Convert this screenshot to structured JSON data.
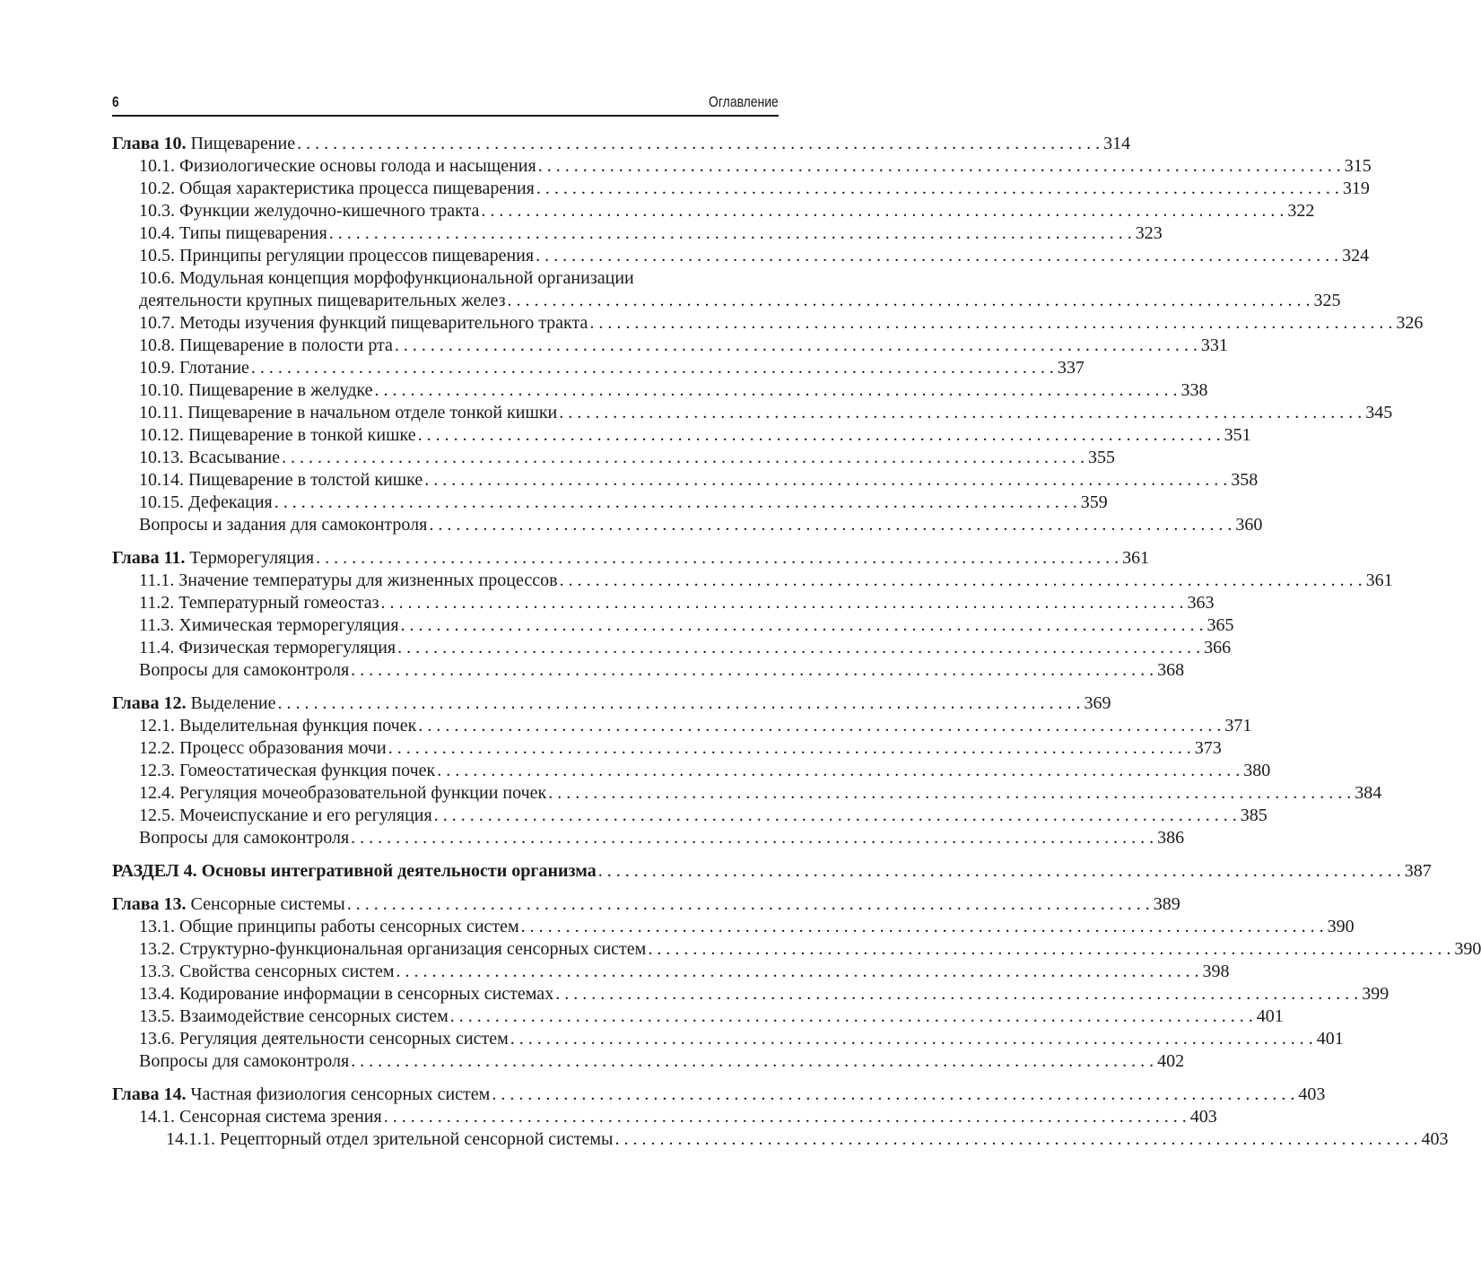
{
  "header": {
    "page_number": "6",
    "title": "Оглавление"
  },
  "groups": [
    {
      "entries": [
        {
          "level": 0,
          "bold": "Глава 10.",
          "label": " Пищеварение",
          "page": "314"
        },
        {
          "level": 1,
          "label": "10.1. Физиологические основы голода и насыщения",
          "page": "315"
        },
        {
          "level": 1,
          "label": "10.2. Общая характеристика процесса пищеварения",
          "page": "319"
        },
        {
          "level": 1,
          "label": "10.3. Функции желудочно-кишечного тракта",
          "page": "322"
        },
        {
          "level": 1,
          "label": "10.4. Типы пищеварения",
          "page": "323"
        },
        {
          "level": 1,
          "label": "10.5. Принципы регуляции процессов пищеварения",
          "page": "324"
        },
        {
          "level": 1,
          "label": "10.6. Модульная концепция морфофункциональной организации",
          "page": ""
        },
        {
          "level": 1,
          "label": "деятельности крупных пищеварительных желез",
          "page": "325"
        },
        {
          "level": 1,
          "label": "10.7. Методы изучения функций пищеварительного тракта",
          "page": "326"
        },
        {
          "level": 1,
          "label": "10.8. Пищеварение в полости рта",
          "page": "331"
        },
        {
          "level": 1,
          "label": "10.9. Глотание",
          "page": "337"
        },
        {
          "level": 1,
          "label": "10.10. Пищеварение в желудке",
          "page": "338"
        },
        {
          "level": 1,
          "label": "10.11. Пищеварение в начальном отделе тонкой кишки",
          "page": "345"
        },
        {
          "level": 1,
          "label": "10.12. Пищеварение в тонкой кишке",
          "page": "351"
        },
        {
          "level": 1,
          "label": "10.13. Всасывание",
          "page": "355"
        },
        {
          "level": 1,
          "label": "10.14. Пищеварение в толстой кишке",
          "page": "358"
        },
        {
          "level": 1,
          "label": "10.15. Дефекация",
          "page": "359"
        },
        {
          "level": 1,
          "label": "Вопросы и задания для самоконтроля",
          "page": "360"
        }
      ]
    },
    {
      "entries": [
        {
          "level": 0,
          "bold": "Глава 11.",
          "label": " Терморегуляция",
          "page": "361"
        },
        {
          "level": 1,
          "label": "11.1. Значение температуры для жизненных процессов",
          "page": "361"
        },
        {
          "level": 1,
          "label": "11.2. Температурный гомеостаз",
          "page": "363"
        },
        {
          "level": 1,
          "label": "11.3. Химическая терморегуляция",
          "page": "365"
        },
        {
          "level": 1,
          "label": "11.4. Физическая терморегуляция",
          "page": "366"
        },
        {
          "level": 1,
          "label": "Вопросы для самоконтроля",
          "page": "368"
        }
      ]
    },
    {
      "entries": [
        {
          "level": 0,
          "bold": "Глава 12.",
          "label": " Выделение",
          "page": "369"
        },
        {
          "level": 1,
          "label": "12.1. Выделительная функция почек",
          "page": "371"
        },
        {
          "level": 1,
          "label": "12.2. Процесс образования мочи",
          "page": "373"
        },
        {
          "level": 1,
          "label": "12.3. Гомеостатическая функция почек",
          "page": "380"
        },
        {
          "level": 1,
          "label": "12.4. Регуляция мочеобразовательной функции почек",
          "page": "384"
        },
        {
          "level": 1,
          "label": "12.5. Мочеиспускание и его регуляция",
          "page": "385"
        },
        {
          "level": 1,
          "label": "Вопросы для самоконтроля",
          "page": "386"
        }
      ]
    },
    {
      "entries": [
        {
          "level": 0,
          "bold": "РАЗДЕЛ 4. Основы интегративной деятельности организма",
          "label": "",
          "page": "387"
        }
      ]
    },
    {
      "entries": [
        {
          "level": 0,
          "bold": "Глава 13.",
          "label": " Сенсорные системы",
          "page": "389"
        },
        {
          "level": 1,
          "label": "13.1. Общие принципы работы сенсорных систем",
          "page": "390"
        },
        {
          "level": 1,
          "label": "13.2. Структурно-функциональная организация сенсорных систем",
          "page": "390"
        },
        {
          "level": 1,
          "label": "13.3. Свойства сенсорных систем",
          "page": "398"
        },
        {
          "level": 1,
          "label": "13.4. Кодирование информации в сенсорных системах",
          "page": "399"
        },
        {
          "level": 1,
          "label": "13.5. Взаимодействие сенсорных систем",
          "page": "401"
        },
        {
          "level": 1,
          "label": "13.6. Регуляция деятельности сенсорных систем",
          "page": "401"
        },
        {
          "level": 1,
          "label": "Вопросы для самоконтроля",
          "page": "402"
        }
      ]
    },
    {
      "entries": [
        {
          "level": 0,
          "bold": "Глава 14.",
          "label": " Частная физиология сенсорных систем",
          "page": "403"
        },
        {
          "level": 1,
          "label": "14.1. Сенсорная система зрения",
          "page": "403"
        },
        {
          "level": 2,
          "label": "14.1.1. Рецепторный отдел зрительной сенсорной системы",
          "page": "403"
        }
      ]
    }
  ]
}
